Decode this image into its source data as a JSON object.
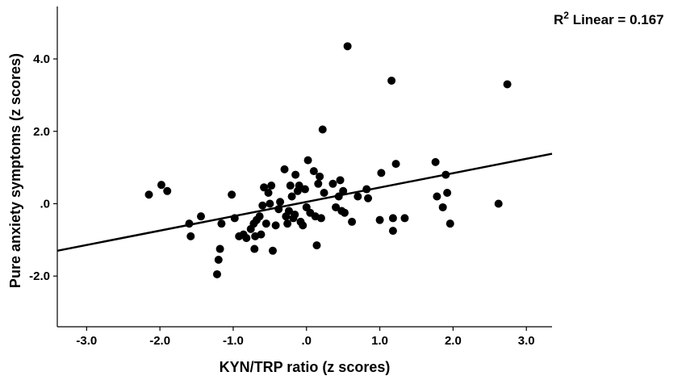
{
  "chart_data": {
    "type": "scatter",
    "xlabel": "KYN/TRP ratio (z scores)",
    "ylabel": "Pure anxiety symptoms (z scores)",
    "xlim": [
      -3.4,
      3.35
    ],
    "ylim": [
      -3.4,
      5.45
    ],
    "x_ticks": [
      -3.0,
      -2.0,
      -1.0,
      0.0,
      1.0,
      2.0,
      3.0
    ],
    "x_tick_labels": [
      "-3.0",
      "-2.0",
      "-1.0",
      ".0",
      "1.0",
      "2.0",
      "3.0"
    ],
    "y_ticks": [
      -2.0,
      0.0,
      2.0,
      4.0
    ],
    "y_tick_labels": [
      "-2.0",
      ".0",
      "2.0",
      "4.0"
    ],
    "fit_line": {
      "x1": -3.4,
      "y1": -1.3,
      "x2": 3.35,
      "y2": 1.38
    },
    "annotation": {
      "r_label": "R",
      "r_sup": "2",
      "text": " Linear = 0.167"
    },
    "grid": false,
    "legend": "none",
    "colors": {
      "points": "#000000",
      "line": "#000000",
      "axes": "#000000"
    },
    "points": [
      {
        "x": -2.15,
        "y": 0.25
      },
      {
        "x": -1.98,
        "y": 0.52
      },
      {
        "x": -1.9,
        "y": 0.35
      },
      {
        "x": -1.6,
        "y": -0.55
      },
      {
        "x": -1.58,
        "y": -0.9
      },
      {
        "x": -1.44,
        "y": -0.35
      },
      {
        "x": -1.22,
        "y": -1.95
      },
      {
        "x": -1.2,
        "y": -1.55
      },
      {
        "x": -1.18,
        "y": -1.25
      },
      {
        "x": -1.16,
        "y": -0.55
      },
      {
        "x": -1.02,
        "y": 0.25
      },
      {
        "x": -0.98,
        "y": -0.4
      },
      {
        "x": -0.92,
        "y": -0.9
      },
      {
        "x": -0.86,
        "y": -0.85
      },
      {
        "x": -0.82,
        "y": -0.95
      },
      {
        "x": -0.76,
        "y": -0.7
      },
      {
        "x": -0.72,
        "y": -0.55
      },
      {
        "x": -0.71,
        "y": -1.25
      },
      {
        "x": -0.7,
        "y": -0.9
      },
      {
        "x": -0.68,
        "y": -0.45
      },
      {
        "x": -0.64,
        "y": -0.35
      },
      {
        "x": -0.62,
        "y": -0.85
      },
      {
        "x": -0.6,
        "y": -0.05
      },
      {
        "x": -0.58,
        "y": 0.45
      },
      {
        "x": -0.55,
        "y": -0.55
      },
      {
        "x": -0.52,
        "y": 0.3
      },
      {
        "x": -0.5,
        "y": 0.0
      },
      {
        "x": -0.48,
        "y": 0.5
      },
      {
        "x": -0.46,
        "y": -1.3
      },
      {
        "x": -0.42,
        "y": -0.6
      },
      {
        "x": -0.38,
        "y": -0.15
      },
      {
        "x": -0.36,
        "y": 0.05
      },
      {
        "x": -0.3,
        "y": 0.95
      },
      {
        "x": -0.28,
        "y": -0.35
      },
      {
        "x": -0.26,
        "y": -0.55
      },
      {
        "x": -0.24,
        "y": -0.2
      },
      {
        "x": -0.22,
        "y": 0.5
      },
      {
        "x": -0.2,
        "y": 0.2
      },
      {
        "x": -0.18,
        "y": -0.4
      },
      {
        "x": -0.16,
        "y": -0.3
      },
      {
        "x": -0.15,
        "y": 0.8
      },
      {
        "x": -0.12,
        "y": 0.35
      },
      {
        "x": -0.1,
        "y": 0.5
      },
      {
        "x": -0.08,
        "y": -0.5
      },
      {
        "x": -0.05,
        "y": -0.6
      },
      {
        "x": -0.02,
        "y": 0.4
      },
      {
        "x": 0.0,
        "y": -0.1
      },
      {
        "x": 0.02,
        "y": 1.2
      },
      {
        "x": 0.05,
        "y": -0.25
      },
      {
        "x": 0.1,
        "y": 0.9
      },
      {
        "x": 0.12,
        "y": -0.35
      },
      {
        "x": 0.14,
        "y": -1.15
      },
      {
        "x": 0.16,
        "y": 0.55
      },
      {
        "x": 0.18,
        "y": 0.75
      },
      {
        "x": 0.2,
        "y": -0.4
      },
      {
        "x": 0.22,
        "y": 2.05
      },
      {
        "x": 0.24,
        "y": 0.3
      },
      {
        "x": 0.36,
        "y": 0.55
      },
      {
        "x": 0.4,
        "y": -0.1
      },
      {
        "x": 0.44,
        "y": 0.2
      },
      {
        "x": 0.46,
        "y": 0.65
      },
      {
        "x": 0.48,
        "y": -0.2
      },
      {
        "x": 0.5,
        "y": 0.35
      },
      {
        "x": 0.52,
        "y": -0.25
      },
      {
        "x": 0.56,
        "y": 4.35
      },
      {
        "x": 0.62,
        "y": -0.5
      },
      {
        "x": 0.7,
        "y": 0.2
      },
      {
        "x": 0.82,
        "y": 0.4
      },
      {
        "x": 0.84,
        "y": 0.15
      },
      {
        "x": 1.0,
        "y": -0.45
      },
      {
        "x": 1.02,
        "y": 0.85
      },
      {
        "x": 1.16,
        "y": 3.4
      },
      {
        "x": 1.18,
        "y": -0.4
      },
      {
        "x": 1.18,
        "y": -0.75
      },
      {
        "x": 1.22,
        "y": 1.1
      },
      {
        "x": 1.34,
        "y": -0.4
      },
      {
        "x": 1.76,
        "y": 1.15
      },
      {
        "x": 1.78,
        "y": 0.2
      },
      {
        "x": 1.86,
        "y": -0.1
      },
      {
        "x": 1.9,
        "y": 0.8
      },
      {
        "x": 1.92,
        "y": 0.3
      },
      {
        "x": 1.96,
        "y": -0.55
      },
      {
        "x": 2.62,
        "y": 0.0
      },
      {
        "x": 2.74,
        "y": 3.3
      }
    ]
  }
}
